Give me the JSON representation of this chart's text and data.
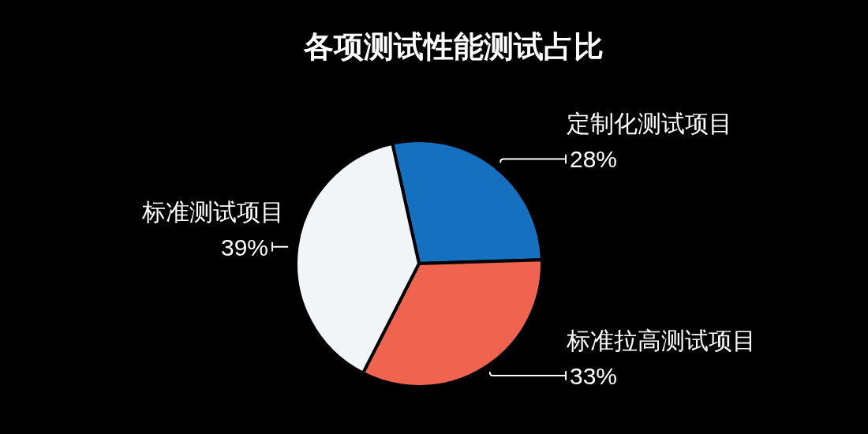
{
  "chart_data": {
    "type": "pie",
    "title": "各项测试性能测试占比",
    "categories": [
      "定制化测试项目",
      "标准拉高测试项目",
      "标准测试项目"
    ],
    "values": [
      28,
      33,
      39
    ],
    "value_labels": [
      "28%",
      "33%",
      "39%"
    ],
    "colors": [
      "#1570c0",
      "#f0634f",
      "#f2f5f8"
    ]
  }
}
